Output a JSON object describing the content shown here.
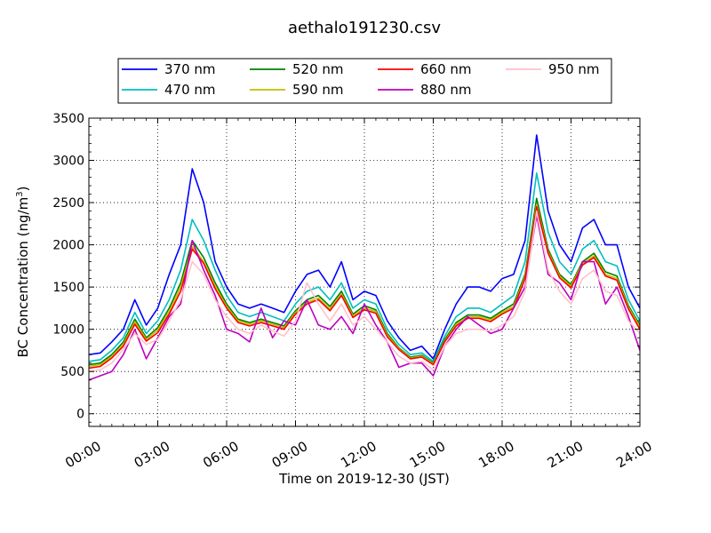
{
  "chart_data": {
    "type": "line",
    "title": "aethalo191230.csv",
    "xlabel": "Time on 2019-12-30 (JST)",
    "ylabel": "BC Concentration (ng/m",
    "ylabel_sup": "3",
    "ylabel_close": ")",
    "xlim": [
      0,
      24
    ],
    "ylim": [
      -150,
      3500
    ],
    "grid": true,
    "legend_placement": "top-center",
    "xticks": [
      0,
      3,
      6,
      9,
      12,
      15,
      18,
      21,
      24
    ],
    "xtick_labels": [
      "00:00",
      "03:00",
      "06:00",
      "09:00",
      "12:00",
      "15:00",
      "18:00",
      "21:00",
      "24:00"
    ],
    "yticks": [
      0,
      500,
      1000,
      1500,
      2000,
      2500,
      3000,
      3500
    ],
    "ytick_labels": [
      "0",
      "500",
      "1000",
      "1500",
      "2000",
      "2500",
      "3000",
      "3500"
    ],
    "x": [
      0,
      0.5,
      1,
      1.5,
      2,
      2.5,
      3,
      3.5,
      4,
      4.5,
      5,
      5.5,
      6,
      6.5,
      7,
      7.5,
      8,
      8.5,
      9,
      9.5,
      10,
      10.5,
      11,
      11.5,
      12,
      12.5,
      13,
      13.5,
      14,
      14.5,
      15,
      15.5,
      16,
      16.5,
      17,
      17.5,
      18,
      18.5,
      19,
      19.5,
      20,
      20.5,
      21,
      21.5,
      22,
      22.5,
      23,
      23.5,
      24
    ],
    "series": [
      {
        "name": "370 nm",
        "color": "#0000ff",
        "values": [
          700,
          720,
          850,
          1000,
          1350,
          1050,
          1250,
          1650,
          2000,
          2900,
          2500,
          1800,
          1500,
          1300,
          1250,
          1300,
          1250,
          1200,
          1450,
          1650,
          1700,
          1500,
          1800,
          1350,
          1450,
          1400,
          1100,
          900,
          750,
          800,
          650,
          1000,
          1300,
          1500,
          1500,
          1450,
          1600,
          1650,
          2050,
          3300,
          2400,
          2000,
          1800,
          2200,
          2300,
          2000,
          2000,
          1500,
          1250
        ]
      },
      {
        "name": "470 nm",
        "color": "#00bfbf",
        "values": [
          620,
          640,
          750,
          900,
          1200,
          950,
          1100,
          1350,
          1700,
          2300,
          2050,
          1700,
          1400,
          1200,
          1150,
          1200,
          1150,
          1100,
          1300,
          1450,
          1500,
          1350,
          1550,
          1250,
          1350,
          1300,
          1000,
          820,
          700,
          720,
          620,
          920,
          1150,
          1250,
          1250,
          1200,
          1300,
          1400,
          1800,
          2850,
          2150,
          1800,
          1650,
          1950,
          2050,
          1800,
          1750,
          1350,
          1100
        ]
      },
      {
        "name": "520 nm",
        "color": "#008000",
        "values": [
          580,
          600,
          700,
          850,
          1120,
          900,
          1020,
          1250,
          1550,
          2050,
          1850,
          1550,
          1300,
          1120,
          1080,
          1120,
          1080,
          1040,
          1220,
          1350,
          1400,
          1270,
          1450,
          1180,
          1280,
          1230,
          950,
          780,
          670,
          690,
          600,
          880,
          1080,
          1170,
          1170,
          1130,
          1220,
          1300,
          1650,
          2550,
          1950,
          1650,
          1530,
          1800,
          1900,
          1680,
          1630,
          1280,
          1050
        ]
      },
      {
        "name": "590 nm",
        "color": "#bfbf00",
        "values": [
          560,
          580,
          680,
          820,
          1090,
          880,
          990,
          1210,
          1500,
          1980,
          1800,
          1510,
          1270,
          1100,
          1060,
          1100,
          1060,
          1020,
          1200,
          1320,
          1370,
          1240,
          1420,
          1160,
          1250,
          1210,
          930,
          770,
          660,
          680,
          590,
          860,
          1060,
          1150,
          1150,
          1110,
          1200,
          1270,
          1620,
          2480,
          1920,
          1630,
          1510,
          1780,
          1870,
          1650,
          1600,
          1260,
          1030
        ]
      },
      {
        "name": "660 nm",
        "color": "#ff0000",
        "values": [
          540,
          560,
          660,
          800,
          1060,
          860,
          960,
          1180,
          1450,
          1950,
          1780,
          1480,
          1250,
          1080,
          1040,
          1080,
          1040,
          1000,
          1180,
          1300,
          1350,
          1220,
          1400,
          1140,
          1230,
          1190,
          910,
          760,
          650,
          670,
          580,
          850,
          1040,
          1130,
          1130,
          1090,
          1180,
          1250,
          1600,
          2450,
          1900,
          1610,
          1490,
          1760,
          1850,
          1630,
          1580,
          1240,
          1000
        ]
      },
      {
        "name": "880 nm",
        "color": "#bf00bf",
        "values": [
          400,
          450,
          500,
          700,
          1000,
          650,
          900,
          1150,
          1300,
          2050,
          1700,
          1400,
          1000,
          950,
          850,
          1250,
          900,
          1100,
          1050,
          1350,
          1050,
          1000,
          1150,
          950,
          1300,
          1050,
          850,
          550,
          600,
          600,
          450,
          800,
          1000,
          1150,
          1050,
          950,
          1000,
          1250,
          1500,
          2350,
          1650,
          1550,
          1350,
          1800,
          1800,
          1300,
          1500,
          1150,
          750
        ]
      },
      {
        "name": "950 nm",
        "color": "#ffc0cb",
        "values": [
          500,
          520,
          600,
          760,
          950,
          820,
          880,
          1100,
          1350,
          1800,
          1650,
          1350,
          1150,
          1000,
          950,
          1050,
          980,
          920,
          1100,
          1550,
          1300,
          1100,
          1300,
          1050,
          1150,
          1000,
          850,
          680,
          600,
          620,
          520,
          800,
          950,
          1000,
          1000,
          980,
          1050,
          1150,
          1450,
          2400,
          1700,
          1450,
          1300,
          1600,
          1700,
          1450,
          1400,
          1100,
          950
        ]
      }
    ]
  }
}
